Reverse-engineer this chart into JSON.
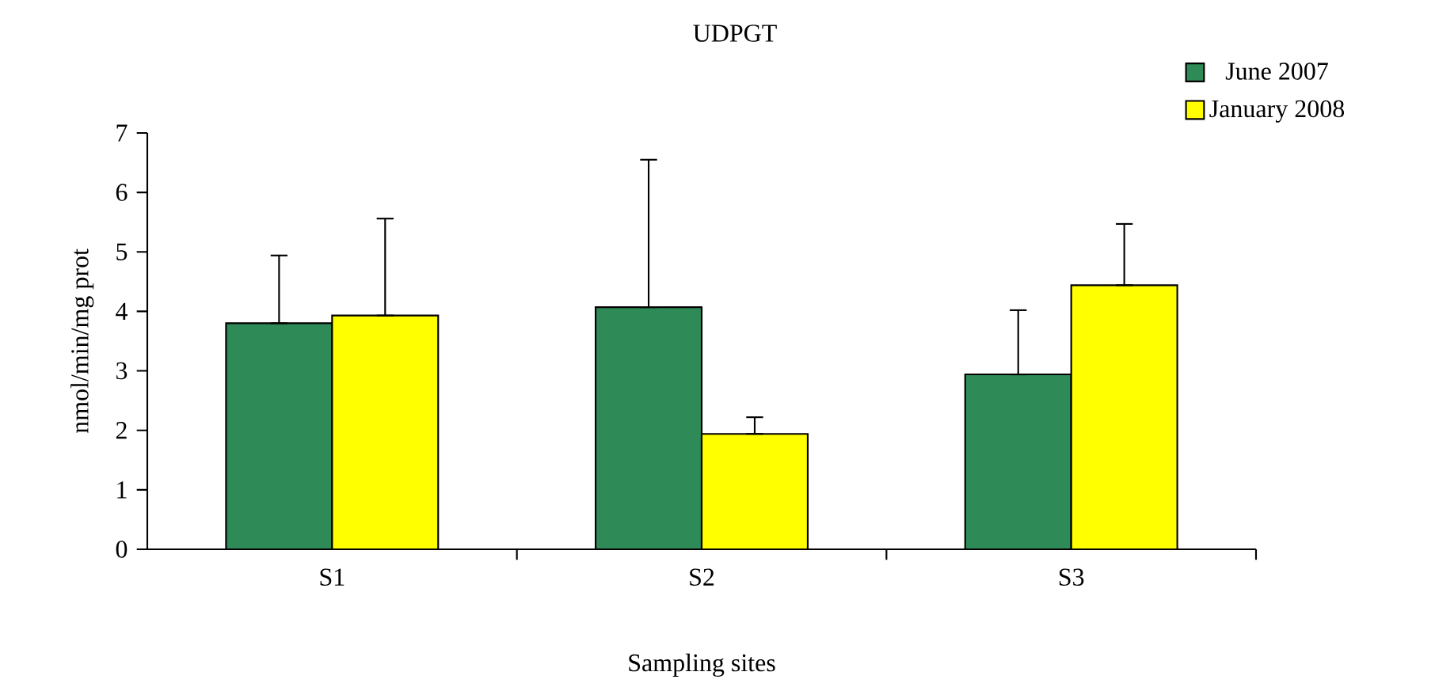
{
  "chart_data": {
    "type": "bar",
    "title": "UDPGT",
    "xlabel": "Sampling sites",
    "ylabel": "nmol/min/mg prot",
    "categories": [
      "S1",
      "S2",
      "S3"
    ],
    "series": [
      {
        "name": "June 2007",
        "color": "#2e8b57",
        "values": [
          3.8,
          4.07,
          2.94
        ],
        "errors": [
          [
            3.8,
            4.94
          ],
          [
            4.07,
            6.55
          ],
          [
            2.94,
            4.02
          ]
        ]
      },
      {
        "name": "January 2008",
        "color": "#ffff00",
        "values": [
          3.93,
          1.94,
          4.44
        ],
        "errors": [
          [
            3.93,
            5.56
          ],
          [
            1.94,
            2.22
          ],
          [
            4.44,
            5.47
          ]
        ]
      }
    ],
    "ylim": [
      0,
      7
    ],
    "yticks": [
      0,
      1,
      2,
      3,
      4,
      5,
      6,
      7
    ],
    "grid": false,
    "legend": "top right"
  }
}
